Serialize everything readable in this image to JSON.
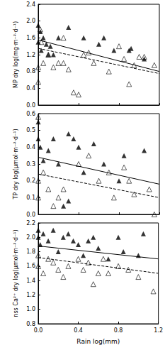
{
  "chart_data": [
    {
      "type": "scatter",
      "y_label": "MP dry log(mg·m⁻²·d⁻¹)",
      "tick_labels": "y",
      "xlim": [
        0,
        1.2
      ],
      "xticks": [
        {
          "value": 0,
          "label": "0.0"
        },
        0.4,
        0.8,
        1.2
      ],
      "ylim": [
        0,
        2.4
      ],
      "yticks": [
        {
          "value": 0,
          "label": "0.0"
        },
        0.4,
        0.8,
        1.2,
        1.6,
        {
          "value": 2,
          "label": "2.0"
        },
        2.4
      ],
      "series": [
        {
          "type": "scatter",
          "marker": "triangle",
          "color": "#000000",
          "x": [
            0,
            0,
            0.02,
            0.03,
            0.05,
            0.08,
            0.1,
            0.12,
            0.15,
            0.2,
            0.3,
            0.45,
            0.6,
            0.65,
            0.75,
            0.9,
            0.92,
            1.05
          ],
          "values": [
            1.9,
            1.5,
            1.75,
            1.3,
            1.6,
            1.45,
            1.2,
            1.4,
            1.2,
            1.6,
            1.85,
            1.6,
            1.45,
            1.6,
            1.3,
            1.3,
            1.35,
            1.1
          ]
        },
        {
          "type": "scatter",
          "marker": "triangle-open",
          "color": "#000000",
          "x": [
            0,
            0,
            0.02,
            0.03,
            0.05,
            0.1,
            0.15,
            0.2,
            0.25,
            0.25,
            0.3,
            0.35,
            0.4,
            0.45,
            0.5,
            0.55,
            0.7,
            0.8,
            0.85,
            0.9,
            0.95,
            1.0,
            1.05,
            1.15
          ],
          "values": [
            0.55,
            0.9,
            1.8,
            1.5,
            1.0,
            1.2,
            0.9,
            1.0,
            1.0,
            1.6,
            0.85,
            0.3,
            0.25,
            1.2,
            1.25,
            1.0,
            0.8,
            1.4,
            1.1,
            0.5,
            0.95,
            1.15,
            1.15,
            0.95
          ]
        },
        {
          "type": "line",
          "line_style": "solid",
          "color": "#000000",
          "x": [
            0,
            1.2
          ],
          "values": [
            1.55,
            0.8
          ]
        },
        {
          "type": "line",
          "line_style": "dashed",
          "color": "#000000",
          "x": [
            0,
            1.2
          ],
          "values": [
            1.35,
            0.75
          ]
        }
      ]
    },
    {
      "type": "scatter",
      "y_label": "TP dry log(µmol·m⁻²·d⁻¹)",
      "tick_labels": "y",
      "xlim": [
        0,
        1.2
      ],
      "xticks": [
        {
          "value": 0,
          "label": "0.0"
        },
        0.4,
        0.8,
        1.2
      ],
      "ylim": [
        0,
        0.6
      ],
      "yticks": [
        {
          "value": 0,
          "label": "0.0"
        },
        0.1,
        0.2,
        0.3,
        0.4,
        0.5,
        0.6
      ],
      "series": [
        {
          "type": "scatter",
          "marker": "triangle",
          "color": "#000000",
          "x": [
            0,
            0,
            0.02,
            0.05,
            0.1,
            0.15,
            0.2,
            0.25,
            0.3,
            0.3,
            0.35,
            0.4,
            0.45,
            0.55,
            0.65,
            0.8,
            0.85,
            1.05
          ],
          "values": [
            0.55,
            0.45,
            0.4,
            0.32,
            0.38,
            0.45,
            0.3,
            0.05,
            0.48,
            0.08,
            0.45,
            0.4,
            0.25,
            0.42,
            0.3,
            0.2,
            0.35,
            0.38
          ]
        },
        {
          "type": "scatter",
          "marker": "triangle-open",
          "color": "#000000",
          "x": [
            0,
            0,
            0,
            0.05,
            0.1,
            0.15,
            0.2,
            0.25,
            0.4,
            0.5,
            0.6,
            0.7,
            0.75,
            0.85,
            0.9,
            0.95,
            1.1,
            1.15
          ],
          "values": [
            0.58,
            0.2,
            0.1,
            0.25,
            0.15,
            0.05,
            0.1,
            0.15,
            0.3,
            0.35,
            0.2,
            0.25,
            0.1,
            0.28,
            0.2,
            0.12,
            0.15,
            0.0
          ]
        },
        {
          "type": "line",
          "line_style": "solid",
          "color": "#000000",
          "x": [
            0,
            1.2
          ],
          "values": [
            0.34,
            0.18
          ]
        },
        {
          "type": "line",
          "line_style": "dashed",
          "color": "#000000",
          "x": [
            0,
            1.2
          ],
          "values": [
            0.24,
            0.1
          ]
        }
      ]
    },
    {
      "type": "scatter",
      "y_label": "nss Ca²⁺ dry log(µmol·m⁻²·d⁻¹)",
      "x_label": "Rain log(mm)",
      "xlim": [
        0,
        1.2
      ],
      "xticks": [
        {
          "value": 0,
          "label": "0.0"
        },
        0.4,
        0.8,
        1.2
      ],
      "ylim": [
        0.8,
        2.2
      ],
      "yticks": [
        0.8,
        {
          "value": 1,
          "label": "1.0"
        },
        1.2,
        1.4,
        1.6,
        1.8,
        {
          "value": 2,
          "label": "2.0"
        },
        2.2
      ],
      "series": [
        {
          "type": "scatter",
          "marker": "triangle",
          "color": "#000000",
          "x": [
            0,
            0,
            0.02,
            0.05,
            0.1,
            0.15,
            0.2,
            0.25,
            0.3,
            0.35,
            0.4,
            0.45,
            0.5,
            0.55,
            0.6,
            0.7,
            0.8,
            0.85,
            1.0,
            1.05
          ],
          "values": [
            2.0,
            2.1,
            1.9,
            2.05,
            1.95,
            2.1,
            1.8,
            2.0,
            2.05,
            1.95,
            1.9,
            1.75,
            1.95,
            2.0,
            1.85,
            1.7,
            2.0,
            1.8,
            1.75,
            2.05
          ]
        },
        {
          "type": "scatter",
          "marker": "triangle-open",
          "color": "#000000",
          "x": [
            0,
            0,
            0.05,
            0.1,
            0.15,
            0.2,
            0.25,
            0.3,
            0.4,
            0.45,
            0.5,
            0.55,
            0.6,
            0.65,
            0.7,
            0.8,
            0.9,
            1.0,
            1.15
          ],
          "values": [
            1.6,
            1.75,
            1.5,
            1.7,
            1.65,
            1.55,
            1.45,
            1.6,
            1.7,
            1.55,
            1.65,
            1.35,
            1.5,
            1.7,
            1.5,
            1.6,
            1.55,
            1.45,
            1.25
          ]
        },
        {
          "type": "line",
          "line_style": "solid",
          "color": "#000000",
          "x": [
            0,
            1.2
          ],
          "values": [
            1.88,
            1.7
          ]
        },
        {
          "type": "line",
          "line_style": "dashed",
          "color": "#000000",
          "x": [
            0,
            1.2
          ],
          "values": [
            1.72,
            1.5
          ]
        }
      ]
    }
  ]
}
